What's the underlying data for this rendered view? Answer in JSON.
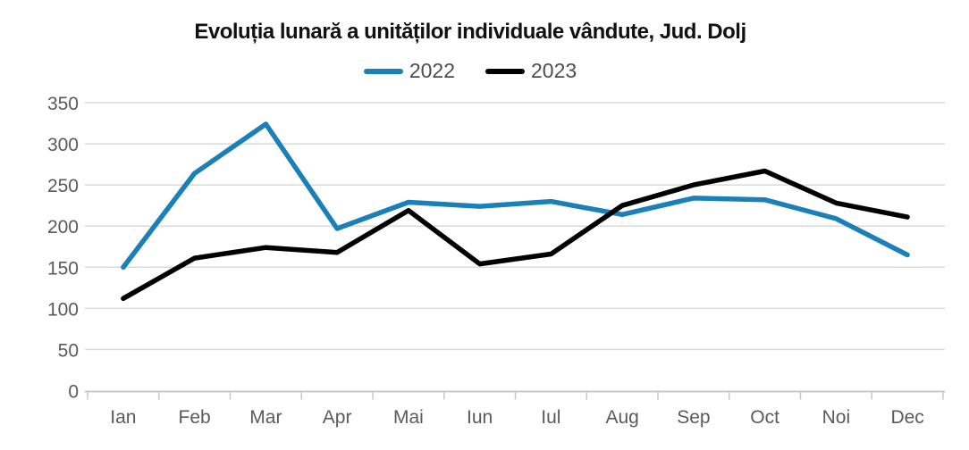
{
  "title": "Evoluția lunară a unităților individuale vândute, Jud. Dolj",
  "chart_data": {
    "type": "line",
    "title": "Evoluția lunară a unităților individuale vândute, Jud. Dolj",
    "categories": [
      "Ian",
      "Feb",
      "Mar",
      "Apr",
      "Mai",
      "Iun",
      "Iul",
      "Aug",
      "Sep",
      "Oct",
      "Noi",
      "Dec"
    ],
    "series": [
      {
        "name": "2022",
        "color": "#1b80b8",
        "values": [
          150,
          264,
          324,
          197,
          229,
          224,
          230,
          214,
          234,
          232,
          209,
          165
        ]
      },
      {
        "name": "2023",
        "color": "#000000",
        "values": [
          112,
          161,
          174,
          168,
          219,
          154,
          166,
          225,
          250,
          267,
          228,
          211
        ]
      }
    ],
    "xlabel": "",
    "ylabel": "",
    "ylim": [
      0,
      350
    ],
    "yticks": [
      0,
      50,
      100,
      150,
      200,
      250,
      300,
      350
    ],
    "grid": true,
    "legend_position": "top-center"
  },
  "colors": {
    "background": "#ffffff",
    "grid": "#dadada",
    "axis": "#c8c8c8",
    "tick_label": "#5a5a5a",
    "legend_text": "#4d4d4d",
    "title_text": "#111111"
  }
}
